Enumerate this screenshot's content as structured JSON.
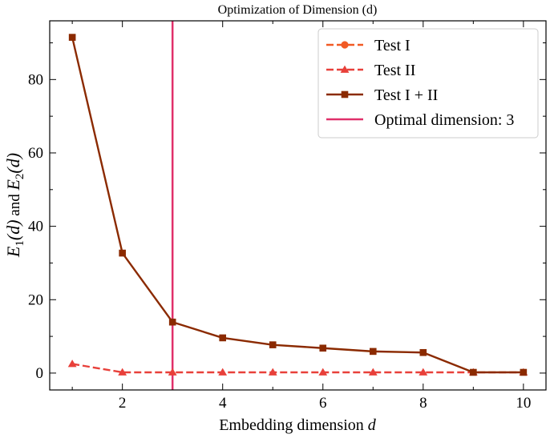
{
  "chart_data": {
    "type": "line",
    "title": "Optimization of Dimension (d)",
    "xlabel": "Embedding dimension",
    "xlabel_var": "d",
    "ylabel": {
      "e1": "E",
      "sub1": "1",
      "arg1": "(d)",
      "mid": " and ",
      "e2": "E",
      "sub2": "2",
      "arg2": "(d)"
    },
    "xlim": [
      0.55,
      10.45
    ],
    "ylim": [
      -4.6,
      96
    ],
    "xticks": [
      2,
      4,
      6,
      8,
      10
    ],
    "xticks_minor": [
      1,
      3,
      5,
      7,
      9
    ],
    "yticks": [
      0,
      20,
      40,
      60,
      80
    ],
    "yticks_minor": [
      10,
      30,
      50,
      70,
      90
    ],
    "grid": false,
    "legend_position": "top-right",
    "x": [
      1,
      2,
      3,
      4,
      5,
      6,
      7,
      8,
      9,
      10
    ],
    "series": [
      {
        "name": "Test I",
        "values": [
          null,
          null,
          null,
          null,
          null,
          null,
          null,
          null,
          null,
          null
        ],
        "color": "#f15a24",
        "line": "dashed",
        "marker": "circle"
      },
      {
        "name": "Test II",
        "values": [
          2.5,
          0.2,
          0.2,
          0.2,
          0.2,
          0.2,
          0.2,
          0.2,
          0.2,
          0.2
        ],
        "color": "#e8403a",
        "line": "dashed",
        "marker": "triangle"
      },
      {
        "name": "Test I + II",
        "values": [
          91.5,
          32.7,
          13.9,
          9.6,
          7.7,
          6.8,
          5.9,
          5.6,
          0.2,
          0.2
        ],
        "color": "#8b2a00",
        "line": "solid",
        "marker": "square"
      }
    ],
    "vline": {
      "x": 3,
      "label": "Optimal dimension: 3",
      "color": "#e0306a"
    }
  }
}
